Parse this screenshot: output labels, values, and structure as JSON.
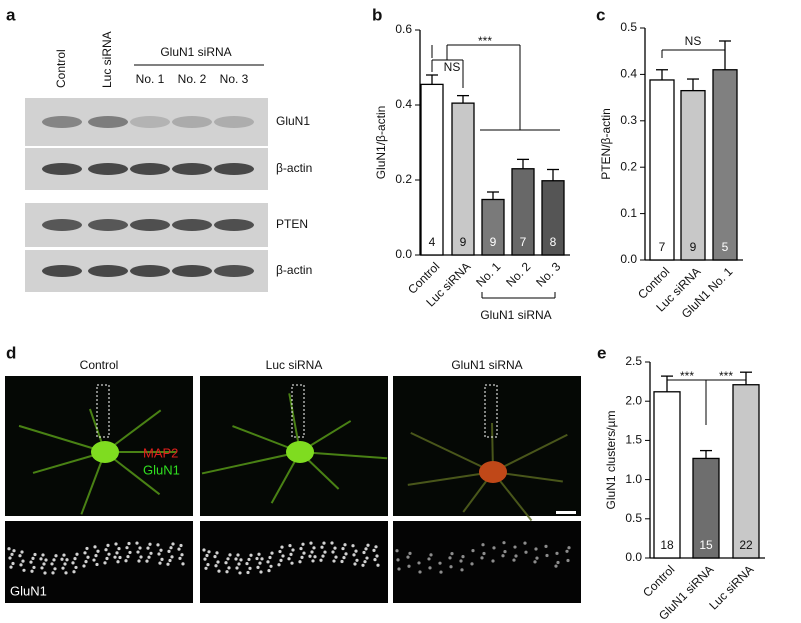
{
  "panel_letters": [
    "a",
    "b",
    "c",
    "d",
    "e"
  ],
  "blot": {
    "lanes": [
      "Control",
      "Luc siRNA",
      "No. 1",
      "No. 2",
      "No. 3"
    ],
    "group_label": "GluN1 siRNA",
    "bands": [
      "GluN1",
      "β-actin",
      "PTEN",
      "β-actin"
    ]
  },
  "images": {
    "columns": [
      "Control",
      "Luc siRNA",
      "GluN1 siRNA"
    ],
    "stain_labels": [
      "MAP2",
      "GluN1"
    ],
    "inset_label": "GluN1"
  },
  "chart_data": [
    {
      "type": "bar",
      "ylabel": "GluN1/β-actin",
      "categories": [
        "Control",
        "Luc siRNA",
        "No. 1",
        "No. 2",
        "No. 3"
      ],
      "values": [
        0.455,
        0.405,
        0.148,
        0.23,
        0.198
      ],
      "errors": [
        0.025,
        0.02,
        0.02,
        0.025,
        0.03
      ],
      "n_labels": [
        4,
        9,
        9,
        7,
        8
      ],
      "colors": [
        "#ffffff",
        "#c8c8c8",
        "#7a7a7a",
        "#686868",
        "#555555"
      ],
      "ylim": [
        0,
        0.6
      ],
      "yticks": [
        {
          "value": 0,
          "label": "0.0"
        },
        0.2,
        0.4,
        0.6
      ],
      "annotations": [
        "NS",
        "***"
      ],
      "group_label": "GluN1 siRNA"
    },
    {
      "type": "bar",
      "ylabel": "PTEN/β-actin",
      "categories": [
        "Control",
        "Luc siRNA",
        "GluN1 No. 1"
      ],
      "values": [
        0.388,
        0.365,
        0.41
      ],
      "errors": [
        0.022,
        0.025,
        0.062
      ],
      "n_labels": [
        7,
        9,
        5
      ],
      "colors": [
        "#ffffff",
        "#c8c8c8",
        "#808080"
      ],
      "ylim": [
        0,
        0.5
      ],
      "yticks": [
        {
          "value": 0,
          "label": "0.0"
        },
        0.1,
        0.2,
        0.3,
        0.4,
        0.5
      ],
      "annotations": [
        "NS"
      ]
    },
    {
      "type": "bar",
      "ylabel": "GluN1 clusters/µm",
      "categories": [
        "Control",
        "GluN1 siRNA",
        "Luc siRNA"
      ],
      "values": [
        2.12,
        1.27,
        2.21
      ],
      "errors": [
        0.2,
        0.1,
        0.16
      ],
      "n_labels": [
        18,
        15,
        22
      ],
      "colors": [
        "#ffffff",
        "#6e6e6e",
        "#c8c8c8"
      ],
      "ylim": [
        0,
        2.5
      ],
      "yticks": [
        {
          "value": 0,
          "label": "0.0"
        },
        0.5,
        {
          "value": 1,
          "label": "1.0"
        },
        1.5,
        {
          "value": 2,
          "label": "2.0"
        },
        2.5
      ],
      "annotations": [
        "***",
        "***"
      ]
    }
  ]
}
